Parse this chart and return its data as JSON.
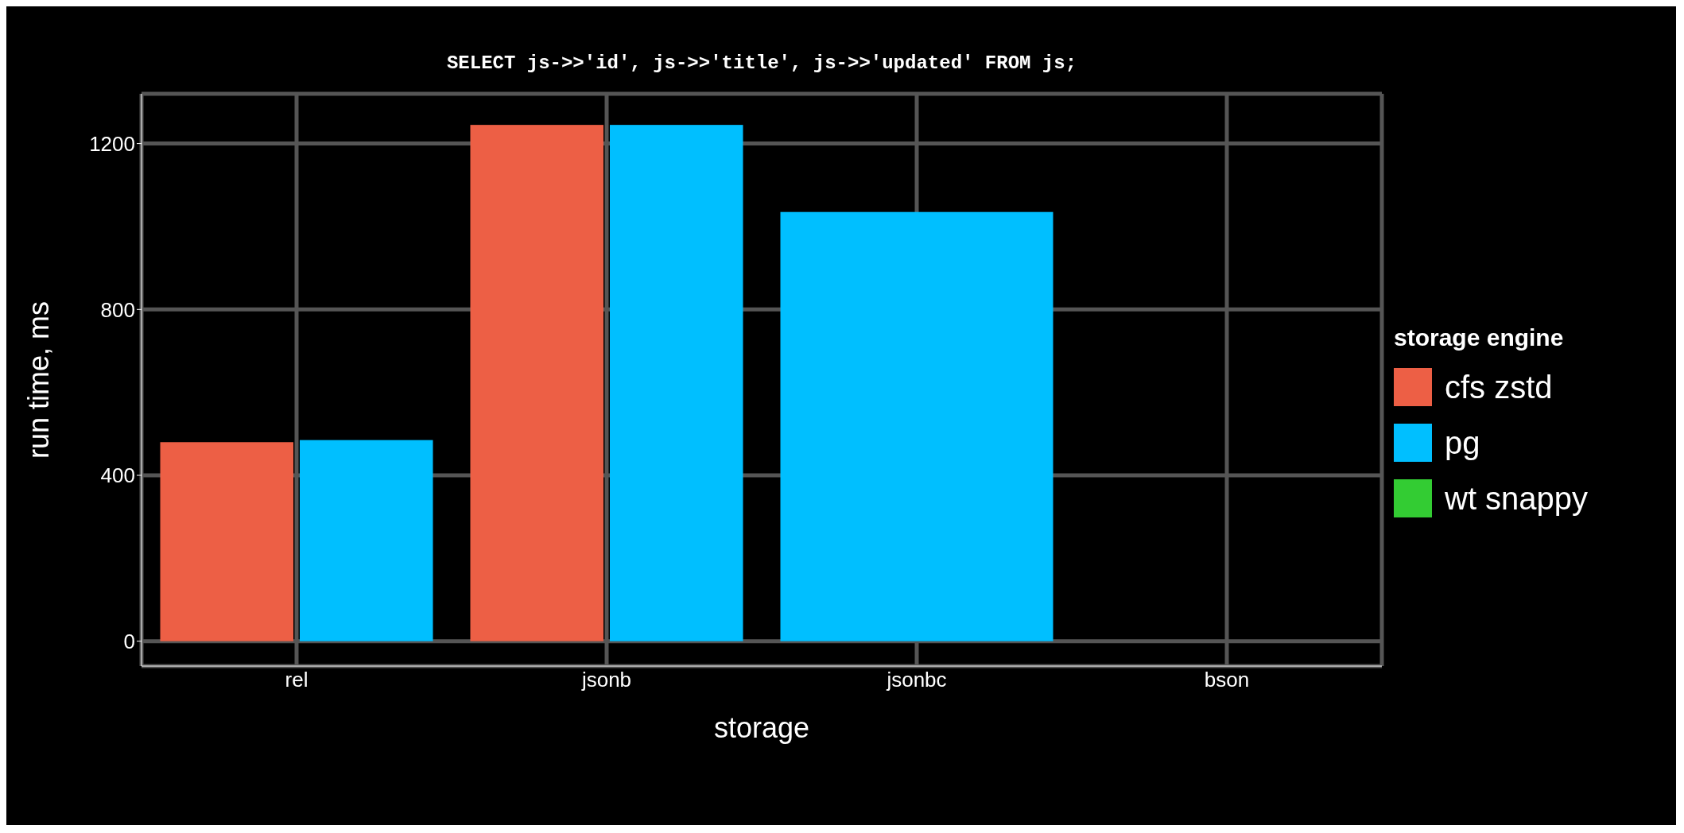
{
  "chart_data": {
    "type": "bar",
    "title": "SELECT js->>'id', js->>'title', js->>'updated' FROM js;",
    "xlabel": "storage",
    "ylabel": "run time, ms",
    "legend_title": "storage engine",
    "categories": [
      "rel",
      "jsonb",
      "jsonbc",
      "bson"
    ],
    "series": [
      {
        "name": "cfs zstd",
        "color": "#ed5f45",
        "values": [
          480,
          1245,
          null,
          null
        ]
      },
      {
        "name": "pg",
        "color": "#00bfff",
        "values": [
          485,
          1245,
          1035,
          null
        ]
      },
      {
        "name": "wt snappy",
        "color": "#33cc33",
        "values": [
          null,
          null,
          null,
          null
        ]
      }
    ],
    "ylim": [
      -60,
      1320
    ],
    "yticks": [
      0,
      400,
      800,
      1200
    ],
    "grid": true,
    "legend": "right"
  }
}
